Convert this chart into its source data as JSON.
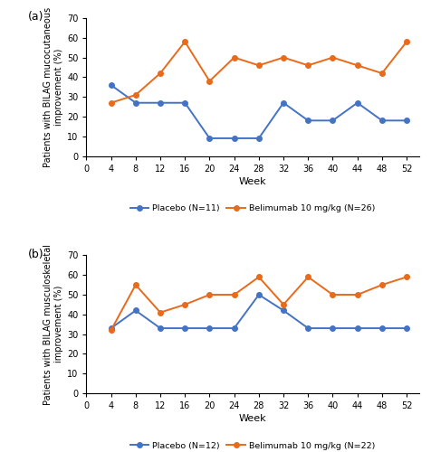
{
  "weeks": [
    4,
    8,
    12,
    16,
    20,
    24,
    28,
    32,
    36,
    40,
    44,
    48,
    52
  ],
  "panel_a": {
    "placebo": [
      36,
      27,
      27,
      27,
      9,
      9,
      9,
      27,
      18,
      18,
      27,
      18,
      18
    ],
    "belimumab": [
      27,
      31,
      42,
      58,
      38,
      50,
      46,
      50,
      46,
      50,
      46,
      42,
      58
    ],
    "placebo_label": "Placebo (N=11)",
    "belimumab_label": "Belimumab 10 mg/kg (N=26)",
    "ylabel": "Patients with BILAG mucocutaneous\nimprovement (%)",
    "panel_label": "(a)"
  },
  "panel_b": {
    "placebo": [
      33,
      42,
      33,
      33,
      33,
      33,
      50,
      42,
      33,
      33,
      33,
      33,
      33
    ],
    "belimumab": [
      32,
      55,
      41,
      45,
      50,
      50,
      59,
      45,
      59,
      50,
      50,
      55,
      59
    ],
    "placebo_label": "Placebo (N=12)",
    "belimumab_label": "Belimumab 10 mg/kg (N=22)",
    "ylabel": "Patients with BILAG musculoskeletal\nimprovement (%)",
    "panel_label": "(b)"
  },
  "placebo_color": "#4472C4",
  "belimumab_color": "#E86A1A",
  "ylim": [
    0,
    70
  ],
  "yticks": [
    0,
    10,
    20,
    30,
    40,
    50,
    60,
    70
  ],
  "xlim": [
    0,
    54
  ],
  "xticks": [
    0,
    4,
    8,
    12,
    16,
    20,
    24,
    28,
    32,
    36,
    40,
    44,
    48,
    52
  ],
  "xlabel": "Week",
  "marker": "o",
  "markersize": 4,
  "linewidth": 1.4
}
